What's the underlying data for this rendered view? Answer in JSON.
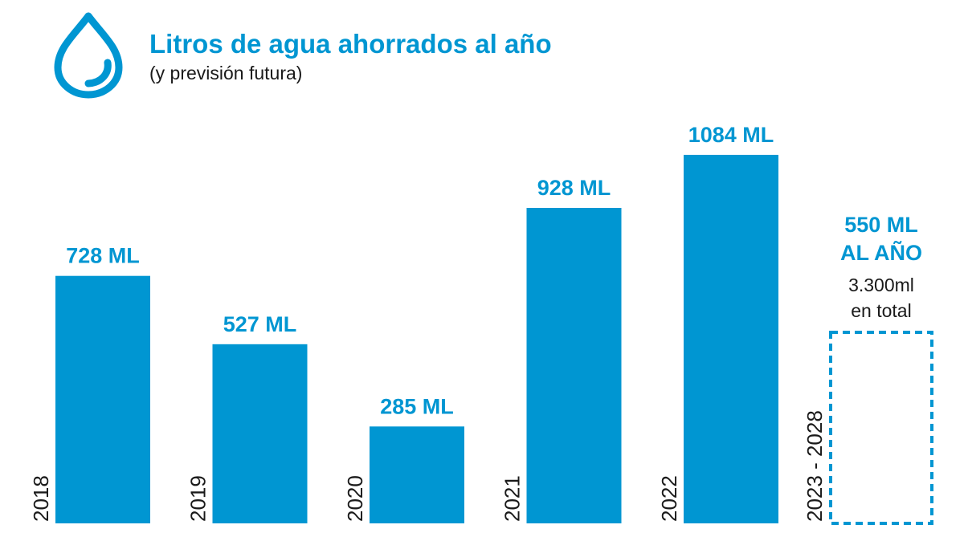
{
  "title": "Litros de agua ahorrados al año",
  "subtitle": "(y previsión futura)",
  "icon": "water-drop-icon",
  "colors": {
    "accent": "#0096d2",
    "text": "#1a1a1a",
    "background": "#ffffff"
  },
  "chart_data": {
    "type": "bar",
    "categories": [
      "2018",
      "2019",
      "2020",
      "2021",
      "2022",
      "2023 - 2028"
    ],
    "values": [
      728,
      527,
      285,
      928,
      1084,
      550
    ],
    "value_labels": [
      "728 ML",
      "527 ML",
      "285 ML",
      "928 ML",
      "1084 ML",
      "550 ML AL AÑO"
    ],
    "forecast": {
      "category": "2023 - 2028",
      "label_line1": "550 ML",
      "label_line2": "AL AÑO",
      "note_line1": "3.300ml",
      "note_line2": "en total",
      "style": "dashed-outline"
    },
    "title": "Litros de agua ahorrados al año",
    "subtitle": "(y previsión futura)",
    "xlabel": "",
    "ylabel": "",
    "grid": false
  }
}
